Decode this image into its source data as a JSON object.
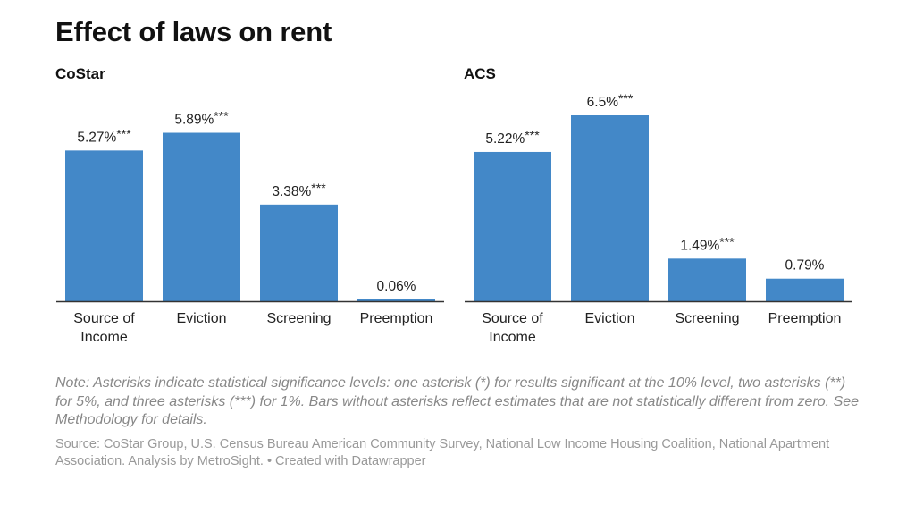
{
  "title": "Effect of laws on rent",
  "note": "Note: Asterisks indicate statistical significance levels: one asterisk (*) for results significant at the 10% level, two asterisks (**) for 5%, and three asterisks (***) for 1%. Bars without asterisks reflect estimates that are not statistically different from zero. See Methodology for details.",
  "source": "Source: CoStar Group, U.S. Census Bureau American Community Survey, National Low Income Housing Coalition, National Apartment Association. Analysis by MetroSight. • Created with Datawrapper",
  "colors": {
    "bar": "#4388c8",
    "baseline": "#333333"
  },
  "chart_data": [
    {
      "type": "bar",
      "title": "CoStar",
      "categories": [
        "Source of Income",
        "Eviction",
        "Screening",
        "Preemption"
      ],
      "category_lines": [
        [
          "Source of",
          "Income"
        ],
        [
          "Eviction"
        ],
        [
          "Screening"
        ],
        [
          "Preemption"
        ]
      ],
      "values": [
        5.27,
        5.89,
        3.38,
        0.06
      ],
      "value_labels": [
        "5.27%",
        "5.89%",
        "3.38%",
        "0.06%"
      ],
      "significance": [
        "***",
        "***",
        "***",
        ""
      ],
      "ylim": [
        0,
        6.5
      ],
      "grid": false
    },
    {
      "type": "bar",
      "title": "ACS",
      "categories": [
        "Source of Income",
        "Eviction",
        "Screening",
        "Preemption"
      ],
      "category_lines": [
        [
          "Source of",
          "Income"
        ],
        [
          "Eviction"
        ],
        [
          "Screening"
        ],
        [
          "Preemption"
        ]
      ],
      "values": [
        5.22,
        6.5,
        1.49,
        0.79
      ],
      "value_labels": [
        "5.22%",
        "6.5%",
        "1.49%",
        "0.79%"
      ],
      "significance": [
        "***",
        "***",
        "***",
        ""
      ],
      "ylim": [
        0,
        6.5
      ],
      "grid": false
    }
  ]
}
